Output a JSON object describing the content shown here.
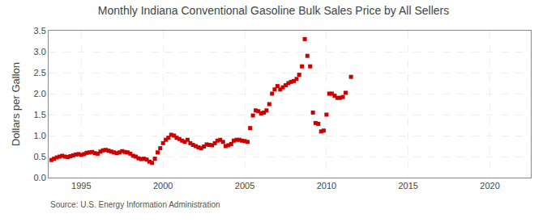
{
  "chart_data": {
    "type": "scatter",
    "title": "Monthly Indiana Conventional Gasoline Bulk Sales Price by All Sellers",
    "y_label": "Dollars per Gallon",
    "annotations": [
      "Source: U.S. Energy Information Administration"
    ],
    "color": "#CC0000",
    "marker": "square",
    "grid": true,
    "xlim": [
      1993.0,
      2022.5
    ],
    "xticks": [
      1995,
      2000,
      2005,
      2010,
      2015,
      2020
    ],
    "ylim": [
      0.0,
      3.5
    ],
    "yticks": [
      {
        "value": 0.0,
        "label": "0.0"
      },
      0.5,
      {
        "value": 1.0,
        "label": "1.0"
      },
      1.5,
      {
        "value": 2.0,
        "label": "2.0"
      },
      2.5,
      {
        "value": 3.0,
        "label": "3.0"
      },
      3.5
    ],
    "x": [
      1993.17,
      1993.33,
      1993.5,
      1993.67,
      1993.83,
      1994.0,
      1994.17,
      1994.33,
      1994.5,
      1994.67,
      1994.83,
      1995.0,
      1995.17,
      1995.33,
      1995.5,
      1995.67,
      1995.83,
      1996.0,
      1996.17,
      1996.33,
      1996.5,
      1996.67,
      1996.83,
      1997.0,
      1997.17,
      1997.33,
      1997.5,
      1997.67,
      1997.83,
      1998.0,
      1998.17,
      1998.33,
      1998.5,
      1998.67,
      1998.83,
      1999.0,
      1999.17,
      1999.33,
      1999.5,
      1999.67,
      1999.83,
      2000.0,
      2000.17,
      2000.33,
      2000.5,
      2000.67,
      2000.83,
      2001.0,
      2001.17,
      2001.33,
      2001.5,
      2001.67,
      2001.83,
      2002.0,
      2002.17,
      2002.33,
      2002.5,
      2002.67,
      2002.83,
      2003.0,
      2003.17,
      2003.33,
      2003.5,
      2003.67,
      2003.83,
      2004.0,
      2004.17,
      2004.33,
      2004.5,
      2004.67,
      2004.83,
      2005.0,
      2005.17,
      2005.33,
      2005.5,
      2005.67,
      2005.83,
      2006.0,
      2006.17,
      2006.33,
      2006.5,
      2006.67,
      2006.83,
      2007.0,
      2007.17,
      2007.33,
      2007.5,
      2007.67,
      2007.83,
      2008.0,
      2008.17,
      2008.33,
      2008.5,
      2008.67,
      2008.83,
      2009.0,
      2009.17,
      2009.33,
      2009.5,
      2009.67,
      2009.83,
      2010.0,
      2010.17,
      2010.33,
      2010.5,
      2010.67,
      2010.83,
      2011.0,
      2011.17,
      2011.5
    ],
    "values": [
      0.42,
      0.45,
      0.48,
      0.5,
      0.52,
      0.5,
      0.49,
      0.51,
      0.53,
      0.55,
      0.56,
      0.54,
      0.56,
      0.59,
      0.6,
      0.61,
      0.58,
      0.57,
      0.62,
      0.65,
      0.66,
      0.64,
      0.62,
      0.6,
      0.58,
      0.6,
      0.63,
      0.61,
      0.6,
      0.57,
      0.52,
      0.5,
      0.46,
      0.44,
      0.45,
      0.43,
      0.38,
      0.35,
      0.45,
      0.6,
      0.7,
      0.82,
      0.9,
      0.95,
      1.02,
      1.0,
      0.95,
      0.92,
      0.88,
      0.85,
      0.9,
      0.82,
      0.78,
      0.75,
      0.72,
      0.7,
      0.74,
      0.79,
      0.78,
      0.77,
      0.82,
      0.88,
      0.9,
      0.85,
      0.75,
      0.77,
      0.8,
      0.88,
      0.9,
      0.9,
      0.88,
      0.87,
      0.85,
      1.18,
      1.48,
      1.6,
      1.58,
      1.53,
      1.55,
      1.6,
      1.75,
      2.0,
      2.1,
      2.18,
      2.1,
      2.15,
      2.2,
      2.25,
      2.28,
      2.3,
      2.35,
      2.45,
      2.65,
      3.3,
      2.9,
      2.65,
      1.55,
      1.3,
      1.28,
      1.1,
      1.12,
      1.5,
      2.0,
      2.0,
      1.95,
      1.9,
      1.9,
      1.92,
      2.02,
      2.4
    ]
  }
}
